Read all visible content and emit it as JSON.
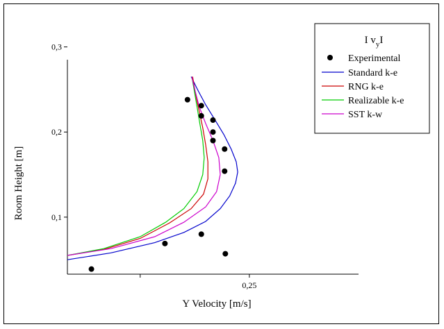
{
  "chart_data": {
    "type": "line",
    "title": "",
    "xlabel": "Y Velocity [m/s]",
    "ylabel": "Room Height [m]",
    "xlim": [
      0.0,
      0.4
    ],
    "ylim": [
      0.033,
      0.285
    ],
    "x_ticks": [
      {
        "value": 0.1,
        "label": ""
      },
      {
        "value": 0.25,
        "label": "0,25"
      }
    ],
    "y_ticks": [
      {
        "value": 0.1,
        "label": "0,1"
      },
      {
        "value": 0.2,
        "label": "0,2"
      },
      {
        "value": 0.3,
        "label": "0,3"
      }
    ],
    "grid": false,
    "legend": {
      "title_main": "I v",
      "title_sub": "y",
      "title_end": "I",
      "placement": "top-right"
    },
    "scatter": {
      "name": "Experimental",
      "color": "#000000",
      "points": [
        {
          "x": 0.033,
          "y": 0.039
        },
        {
          "x": 0.134,
          "y": 0.069
        },
        {
          "x": 0.184,
          "y": 0.08
        },
        {
          "x": 0.217,
          "y": 0.057
        },
        {
          "x": 0.165,
          "y": 0.238
        },
        {
          "x": 0.184,
          "y": 0.231
        },
        {
          "x": 0.184,
          "y": 0.219
        },
        {
          "x": 0.2,
          "y": 0.214
        },
        {
          "x": 0.2,
          "y": 0.2
        },
        {
          "x": 0.2,
          "y": 0.19
        },
        {
          "x": 0.216,
          "y": 0.18
        },
        {
          "x": 0.216,
          "y": 0.154
        }
      ]
    },
    "series": [
      {
        "name": "Standard k-e",
        "color": "#0000cc",
        "points": [
          [
            0.0,
            0.05
          ],
          [
            0.06,
            0.058
          ],
          [
            0.12,
            0.07
          ],
          [
            0.16,
            0.082
          ],
          [
            0.19,
            0.095
          ],
          [
            0.21,
            0.11
          ],
          [
            0.223,
            0.125
          ],
          [
            0.231,
            0.14
          ],
          [
            0.234,
            0.153
          ],
          [
            0.232,
            0.165
          ],
          [
            0.225,
            0.18
          ],
          [
            0.215,
            0.197
          ],
          [
            0.203,
            0.214
          ],
          [
            0.19,
            0.232
          ],
          [
            0.18,
            0.248
          ],
          [
            0.17,
            0.265
          ]
        ]
      },
      {
        "name": "RNG k-e",
        "color": "#cc0000",
        "points": [
          [
            0.0,
            0.055
          ],
          [
            0.05,
            0.062
          ],
          [
            0.1,
            0.075
          ],
          [
            0.14,
            0.093
          ],
          [
            0.17,
            0.11
          ],
          [
            0.187,
            0.127
          ],
          [
            0.193,
            0.145
          ],
          [
            0.193,
            0.165
          ],
          [
            0.19,
            0.185
          ],
          [
            0.186,
            0.205
          ],
          [
            0.181,
            0.225
          ],
          [
            0.176,
            0.245
          ],
          [
            0.172,
            0.265
          ]
        ]
      },
      {
        "name": "Realizable k-e",
        "color": "#00cc00",
        "points": [
          [
            0.0,
            0.055
          ],
          [
            0.05,
            0.063
          ],
          [
            0.1,
            0.077
          ],
          [
            0.135,
            0.094
          ],
          [
            0.16,
            0.11
          ],
          [
            0.178,
            0.13
          ],
          [
            0.186,
            0.15
          ],
          [
            0.188,
            0.17
          ],
          [
            0.186,
            0.19
          ],
          [
            0.182,
            0.21
          ],
          [
            0.178,
            0.23
          ],
          [
            0.174,
            0.25
          ],
          [
            0.171,
            0.265
          ]
        ]
      },
      {
        "name": "SST k-w",
        "color": "#cc00cc",
        "points": [
          [
            0.0,
            0.055
          ],
          [
            0.06,
            0.063
          ],
          [
            0.12,
            0.077
          ],
          [
            0.16,
            0.094
          ],
          [
            0.19,
            0.112
          ],
          [
            0.205,
            0.13
          ],
          [
            0.21,
            0.15
          ],
          [
            0.208,
            0.17
          ],
          [
            0.2,
            0.19
          ],
          [
            0.19,
            0.21
          ],
          [
            0.181,
            0.23
          ],
          [
            0.175,
            0.25
          ],
          [
            0.171,
            0.265
          ]
        ]
      }
    ]
  }
}
